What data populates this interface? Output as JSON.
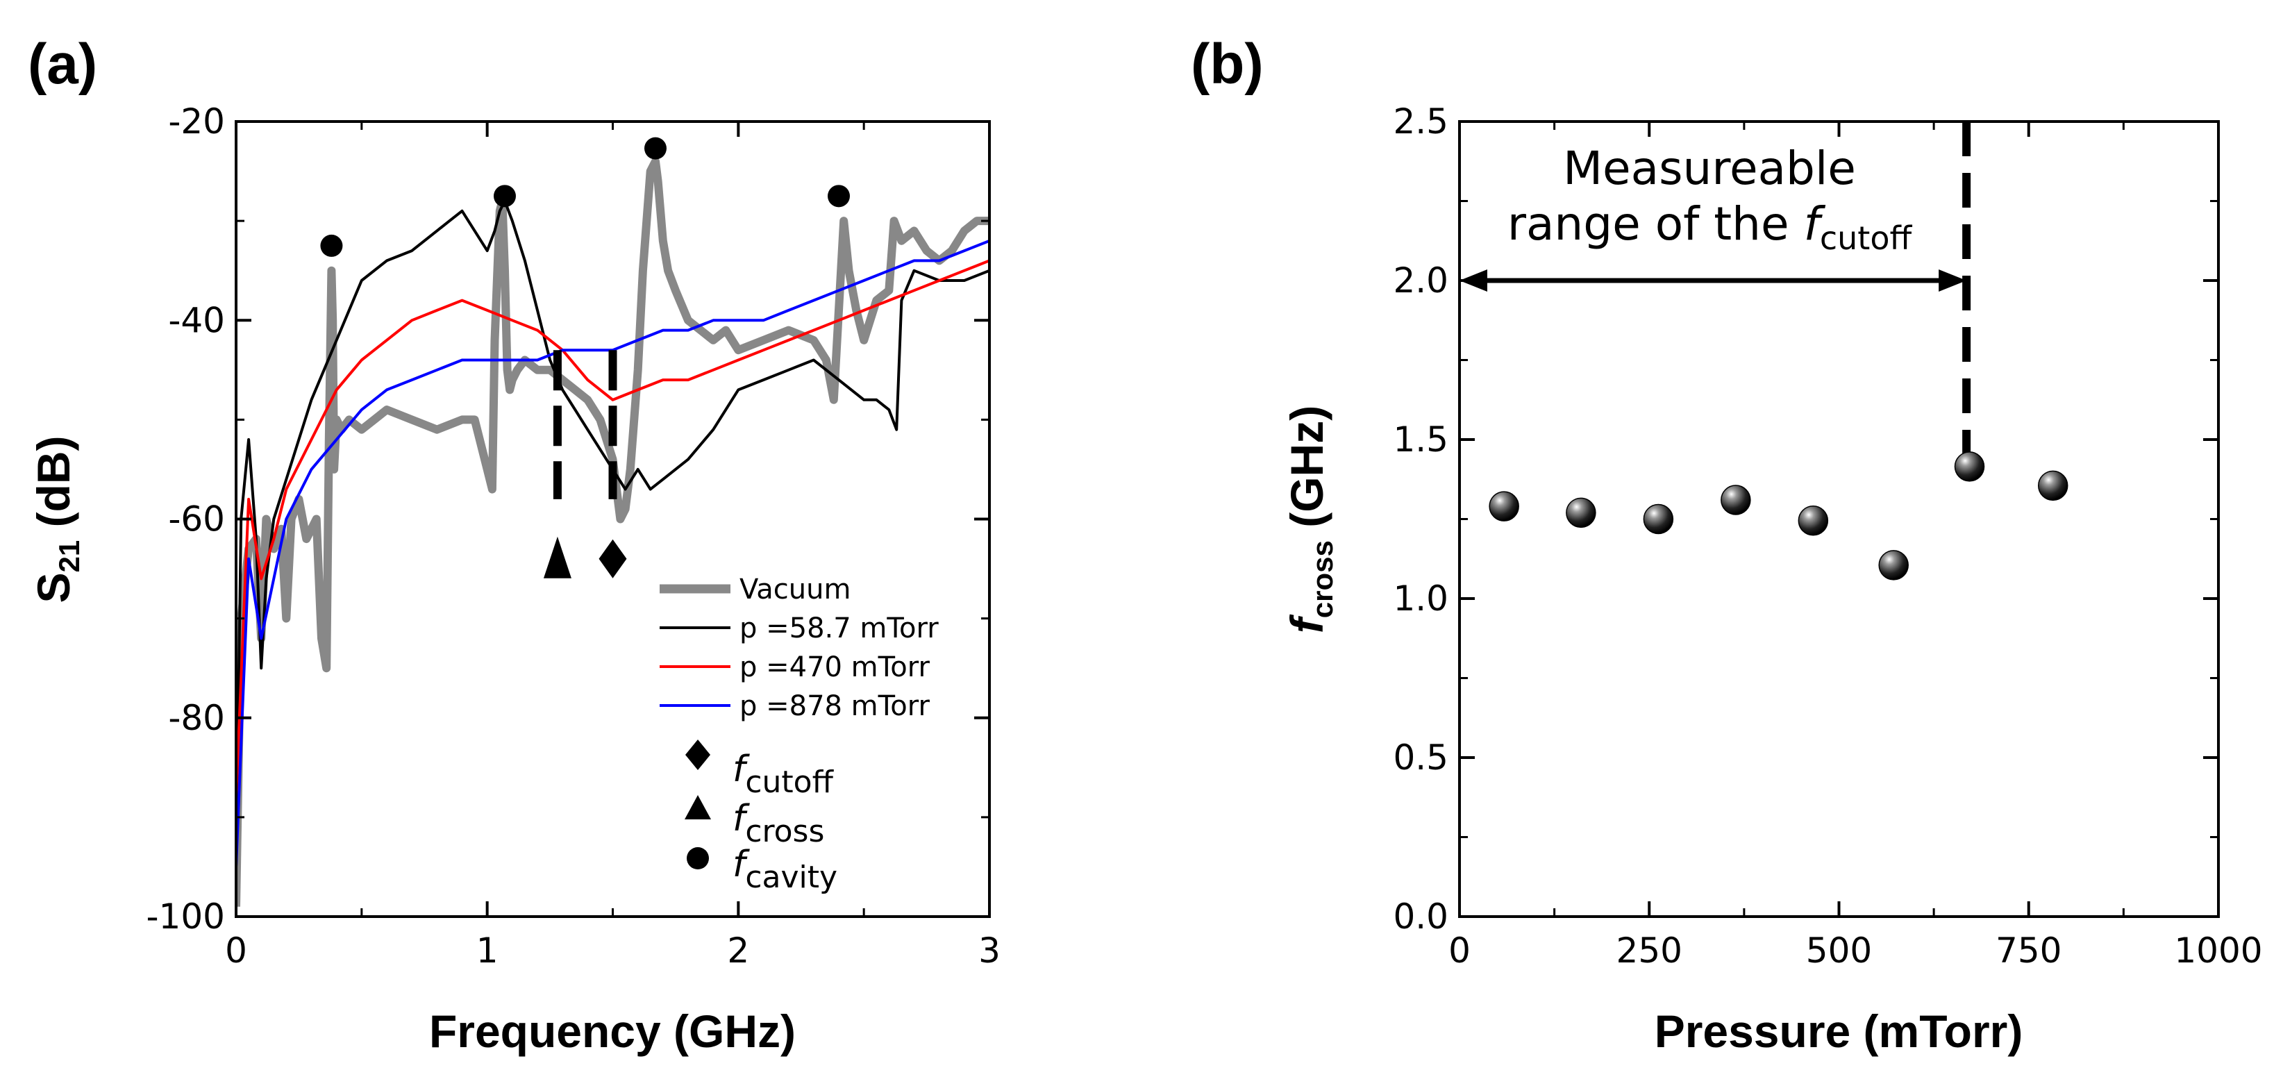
{
  "chart_data": [
    {
      "panel_label": "(a)",
      "type": "line",
      "xlabel": "Frequency (GHz)",
      "ylabel_main": "S",
      "ylabel_sub": "21",
      "ylabel_unit": " (dB)",
      "xlim": [
        0,
        3
      ],
      "ylim": [
        -100,
        -20
      ],
      "xticks": [
        "0",
        "1",
        "2",
        "3"
      ],
      "xtick_values": [
        0,
        1,
        2,
        3
      ],
      "yticks": [
        "-100",
        "-80",
        "-60",
        "-40",
        "-20"
      ],
      "ytick_values": [
        -100,
        -80,
        -60,
        -40,
        -20
      ],
      "series": [
        {
          "name": "Vacuum",
          "color": "#888888",
          "x": [
            0.0,
            0.02,
            0.05,
            0.08,
            0.1,
            0.12,
            0.15,
            0.18,
            0.2,
            0.22,
            0.25,
            0.28,
            0.3,
            0.32,
            0.34,
            0.36,
            0.37,
            0.38,
            0.385,
            0.39,
            0.4,
            0.42,
            0.45,
            0.5,
            0.55,
            0.6,
            0.7,
            0.8,
            0.9,
            0.95,
            1.0,
            1.02,
            1.03,
            1.05,
            1.06,
            1.07,
            1.08,
            1.09,
            1.1,
            1.12,
            1.15,
            1.2,
            1.25,
            1.3,
            1.35,
            1.4,
            1.45,
            1.5,
            1.53,
            1.55,
            1.57,
            1.6,
            1.62,
            1.65,
            1.67,
            1.68,
            1.7,
            1.72,
            1.75,
            1.8,
            1.85,
            1.9,
            1.95,
            2.0,
            2.1,
            2.2,
            2.3,
            2.35,
            2.38,
            2.4,
            2.42,
            2.44,
            2.47,
            2.5,
            2.55,
            2.6,
            2.62,
            2.65,
            2.7,
            2.75,
            2.8,
            2.85,
            2.9,
            2.95,
            3.0
          ],
          "y": [
            -99,
            -70,
            -63,
            -62,
            -72,
            -60,
            -63,
            -61,
            -70,
            -60,
            -58,
            -62,
            -61,
            -60,
            -72,
            -75,
            -52,
            -35,
            -40,
            -55,
            -50,
            -51,
            -50,
            -51,
            -50,
            -49,
            -50,
            -51,
            -50,
            -50,
            -55,
            -57,
            -42,
            -29,
            -28,
            -35,
            -45,
            -47,
            -46,
            -45,
            -44,
            -45,
            -45,
            -46,
            -47,
            -48,
            -50,
            -54,
            -60,
            -59,
            -55,
            -45,
            -35,
            -25,
            -24,
            -26,
            -32,
            -35,
            -37,
            -40,
            -41,
            -42,
            -41,
            -43,
            -42,
            -41,
            -42,
            -44,
            -48,
            -39,
            -30,
            -35,
            -39,
            -42,
            -38,
            -37,
            -30,
            -32,
            -31,
            -33,
            -34,
            -33,
            -31,
            -30,
            -30
          ]
        },
        {
          "name": "p =58.7 mTorr",
          "color": "#000000",
          "x": [
            0.0,
            0.02,
            0.05,
            0.08,
            0.1,
            0.12,
            0.15,
            0.2,
            0.25,
            0.3,
            0.4,
            0.5,
            0.6,
            0.7,
            0.8,
            0.85,
            0.9,
            0.95,
            1.0,
            1.03,
            1.05,
            1.07,
            1.1,
            1.15,
            1.2,
            1.25,
            1.3,
            1.35,
            1.4,
            1.45,
            1.5,
            1.55,
            1.6,
            1.65,
            1.7,
            1.8,
            1.9,
            2.0,
            2.1,
            2.2,
            2.3,
            2.4,
            2.45,
            2.5,
            2.55,
            2.6,
            2.63,
            2.65,
            2.7,
            2.8,
            2.9,
            3.0
          ],
          "y": [
            -95,
            -60,
            -52,
            -62,
            -75,
            -66,
            -60,
            -56,
            -52,
            -48,
            -42,
            -36,
            -34,
            -33,
            -31,
            -30,
            -29,
            -31,
            -33,
            -31,
            -29,
            -28,
            -30,
            -34,
            -39,
            -44,
            -47,
            -49,
            -51,
            -53,
            -55,
            -57,
            -55,
            -57,
            -56,
            -54,
            -51,
            -47,
            -46,
            -45,
            -44,
            -46,
            -47,
            -48,
            -48,
            -49,
            -51,
            -38,
            -35,
            -36,
            -36,
            -35
          ]
        },
        {
          "name": "p =470 mTorr",
          "color": "#ff0000",
          "x": [
            0.0,
            0.05,
            0.1,
            0.15,
            0.2,
            0.3,
            0.4,
            0.5,
            0.6,
            0.7,
            0.8,
            0.9,
            1.0,
            1.1,
            1.2,
            1.3,
            1.4,
            1.5,
            1.6,
            1.7,
            1.8,
            1.9,
            2.0,
            2.1,
            2.2,
            2.3,
            2.4,
            2.5,
            2.6,
            2.7,
            2.8,
            2.9,
            3.0
          ],
          "y": [
            -88,
            -58,
            -66,
            -62,
            -57,
            -52,
            -47,
            -44,
            -42,
            -40,
            -39,
            -38,
            -39,
            -40,
            -41,
            -43,
            -46,
            -48,
            -47,
            -46,
            -46,
            -45,
            -44,
            -43,
            -42,
            -41,
            -40,
            -39,
            -38,
            -37,
            -36,
            -35,
            -34
          ]
        },
        {
          "name": "p =878 mTorr",
          "color": "#0000ff",
          "x": [
            0.0,
            0.05,
            0.1,
            0.15,
            0.2,
            0.3,
            0.4,
            0.5,
            0.6,
            0.7,
            0.8,
            0.9,
            1.0,
            1.1,
            1.2,
            1.3,
            1.4,
            1.5,
            1.6,
            1.7,
            1.8,
            1.9,
            2.0,
            2.1,
            2.2,
            2.3,
            2.4,
            2.5,
            2.6,
            2.7,
            2.8,
            2.9,
            3.0
          ],
          "y": [
            -95,
            -64,
            -72,
            -66,
            -60,
            -55,
            -52,
            -49,
            -47,
            -46,
            -45,
            -44,
            -44,
            -44,
            -44,
            -43,
            -43,
            -43,
            -42,
            -41,
            -41,
            -40,
            -40,
            -40,
            -39,
            -38,
            -37,
            -36,
            -35,
            -34,
            -34,
            -33,
            -32
          ]
        }
      ],
      "markers": [
        {
          "name": "f_cutoff",
          "shape": "diamond",
          "label_main": "f",
          "label_sub": "cutoff",
          "points": [
            {
              "x": 1.5,
              "y": -64
            }
          ]
        },
        {
          "name": "f_cross",
          "shape": "triangle",
          "label_main": "f",
          "label_sub": "cross",
          "points": [
            {
              "x": 1.28,
              "y": -64
            }
          ]
        },
        {
          "name": "f_cavity",
          "shape": "circle",
          "label_main": "f",
          "label_sub": "cavity",
          "points": [
            {
              "x": 0.38,
              "y": -32.5
            },
            {
              "x": 1.07,
              "y": -27.5
            },
            {
              "x": 1.67,
              "y": -22.7
            },
            {
              "x": 2.4,
              "y": -27.5
            }
          ]
        }
      ],
      "dashed_markers": [
        {
          "x": 1.28,
          "y_top": -43,
          "y_bottom": -58
        },
        {
          "x": 1.5,
          "y_top": -43,
          "y_bottom": -58
        }
      ],
      "legend_position": "bottom-right"
    },
    {
      "panel_label": "(b)",
      "type": "scatter",
      "xlabel": "Pressure (mTorr)",
      "ylabel_main": "f",
      "ylabel_sub": "cross",
      "ylabel_unit": " (GHz)",
      "xlim": [
        0,
        1000
      ],
      "ylim": [
        0,
        2.5
      ],
      "xticks": [
        "0",
        "250",
        "500",
        "750",
        "1000"
      ],
      "xtick_values": [
        0,
        250,
        500,
        750,
        1000
      ],
      "yticks": [
        "0.0",
        "0.5",
        "1.0",
        "1.5",
        "2.0",
        "2.5"
      ],
      "ytick_values": [
        0,
        0.5,
        1.0,
        1.5,
        2.0,
        2.5
      ],
      "points": [
        {
          "x": 58.7,
          "y": 1.29
        },
        {
          "x": 160,
          "y": 1.27
        },
        {
          "x": 262,
          "y": 1.25
        },
        {
          "x": 364,
          "y": 1.31
        },
        {
          "x": 466,
          "y": 1.245
        },
        {
          "x": 572,
          "y": 1.105
        },
        {
          "x": 672,
          "y": 1.415
        },
        {
          "x": 782,
          "y": 1.355
        }
      ],
      "annotation": {
        "line1": "Measureable",
        "line2_prefix": "range of the ",
        "line2_f": "f",
        "line2_sub": "cutoff",
        "arrow_from_x": 0,
        "arrow_to_x": 668,
        "arrow_y": 2.0,
        "dashed_x": 668,
        "dashed_y_top": 2.5,
        "dashed_y_bottom": 1.45
      }
    }
  ]
}
